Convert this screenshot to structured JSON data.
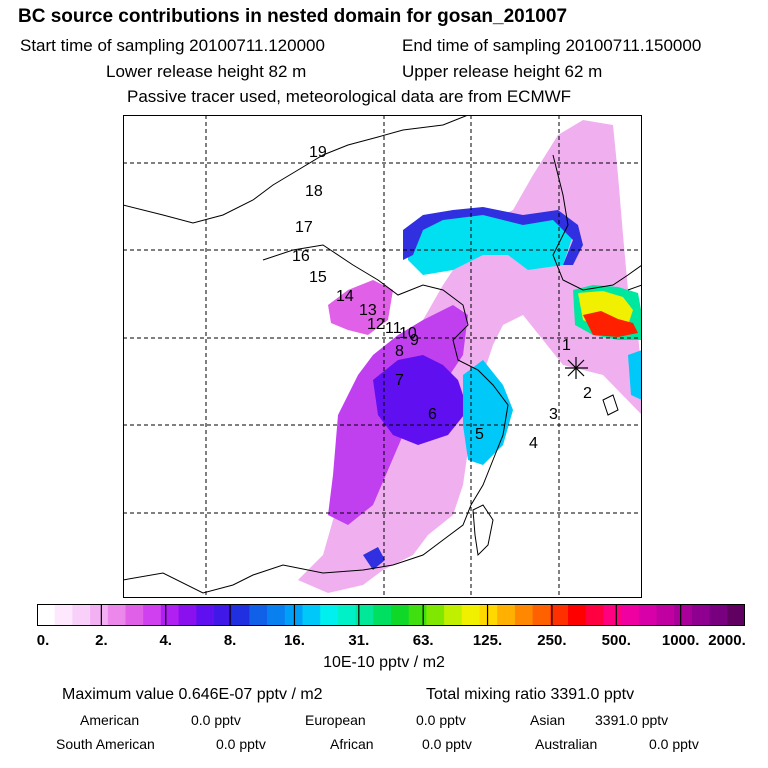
{
  "header": {
    "title": "BC  source contributions in nested domain for gosan_201007",
    "start_label": "Start time of sampling 20100711.120000",
    "end_label": "End time of sampling 20100711.150000",
    "lower_label": "Lower release height   82 m",
    "upper_label": "Upper release height   62 m",
    "note": "Passive tracer used, meteorological data are from ECMWF"
  },
  "map": {
    "release_marker": "asterisk-icon",
    "trajectory_labels": [
      "1",
      "2",
      "3",
      "4",
      "5",
      "6",
      "7",
      "8",
      "9",
      "10",
      "11",
      "12",
      "13",
      "14",
      "15",
      "16",
      "17",
      "18",
      "19"
    ]
  },
  "colorbar": {
    "tick_labels": [
      "0.",
      "2.",
      "4.",
      "8.",
      "16.",
      "31.",
      "63.",
      "125.",
      "250.",
      "500.",
      "1000.",
      "2000."
    ],
    "colors": [
      "#ffffff",
      "#fde8fd",
      "#f9d0f9",
      "#f3b0f3",
      "#ec88ec",
      "#e060e8",
      "#d040f0",
      "#b020f0",
      "#8a10f0",
      "#6010f0",
      "#4018e8",
      "#2030e0",
      "#1060e8",
      "#0880f0",
      "#00a0f8",
      "#00c8f8",
      "#00f0f0",
      "#00f0c8",
      "#00e898",
      "#00e060",
      "#10d828",
      "#40e010",
      "#80e800",
      "#c0f000",
      "#f0f000",
      "#ffd800",
      "#ffb000",
      "#ff8800",
      "#ff6000",
      "#ff3000",
      "#ff0000",
      "#ff0040",
      "#ff0080",
      "#f000a0",
      "#d800a8",
      "#c000a0",
      "#a80098",
      "#900090",
      "#780080",
      "#600060"
    ],
    "unit": "10E-10 pptv / m2"
  },
  "stats": {
    "max_value": "Maximum value  0.646E-07 pptv / m2",
    "total_mixing": "Total mixing ratio     3391.0 pptv",
    "regions": {
      "american": "American",
      "american_val": "0.0 pptv",
      "european": "European",
      "european_val": "0.0 pptv",
      "asian": "Asian",
      "asian_val": "3391.0 pptv",
      "south_american": "South American",
      "south_american_val": "0.0 pptv",
      "african": "African",
      "african_val": "0.0 pptv",
      "australian": "Australian",
      "australian_val": "0.0 pptv"
    }
  }
}
